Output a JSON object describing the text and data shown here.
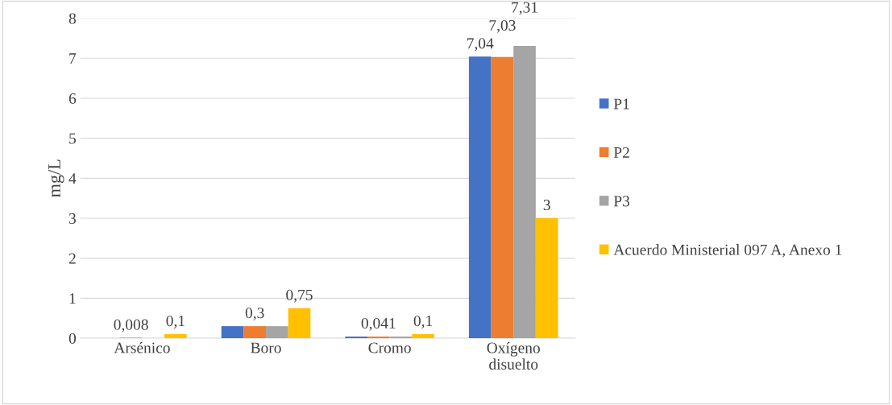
{
  "chart_data": {
    "type": "bar",
    "ylabel": "mg/L",
    "categories": [
      "Arsénico",
      "Boro",
      "Cromo",
      "Oxígeno\ndisuelto"
    ],
    "series": [
      {
        "name": "P1",
        "color": "#4472c4",
        "values": [
          null,
          0.3,
          0.041,
          7.04
        ],
        "value_labels": [
          null,
          null,
          null,
          "7,04"
        ]
      },
      {
        "name": "P2",
        "color": "#ed7d31",
        "values": [
          0.008,
          0.3,
          0.041,
          7.03
        ],
        "value_labels": [
          "0,008",
          "0,3",
          "0,041",
          "7,03"
        ]
      },
      {
        "name": "P3",
        "color": "#a5a5a5",
        "values": [
          null,
          0.3,
          0.041,
          7.31
        ],
        "value_labels": [
          null,
          null,
          null,
          "7,31"
        ]
      },
      {
        "name": "Acuerdo Ministerial 097 A, Anexo 1",
        "color": "#ffc000",
        "values": [
          0.1,
          0.75,
          0.1,
          3
        ],
        "value_labels": [
          "0,1",
          "0,75",
          "0,1",
          "3"
        ]
      }
    ],
    "ylim": [
      0,
      8
    ],
    "yticks": [
      0,
      1,
      2,
      3,
      4,
      5,
      6,
      7,
      8
    ],
    "grid": "y",
    "legend": "right"
  }
}
